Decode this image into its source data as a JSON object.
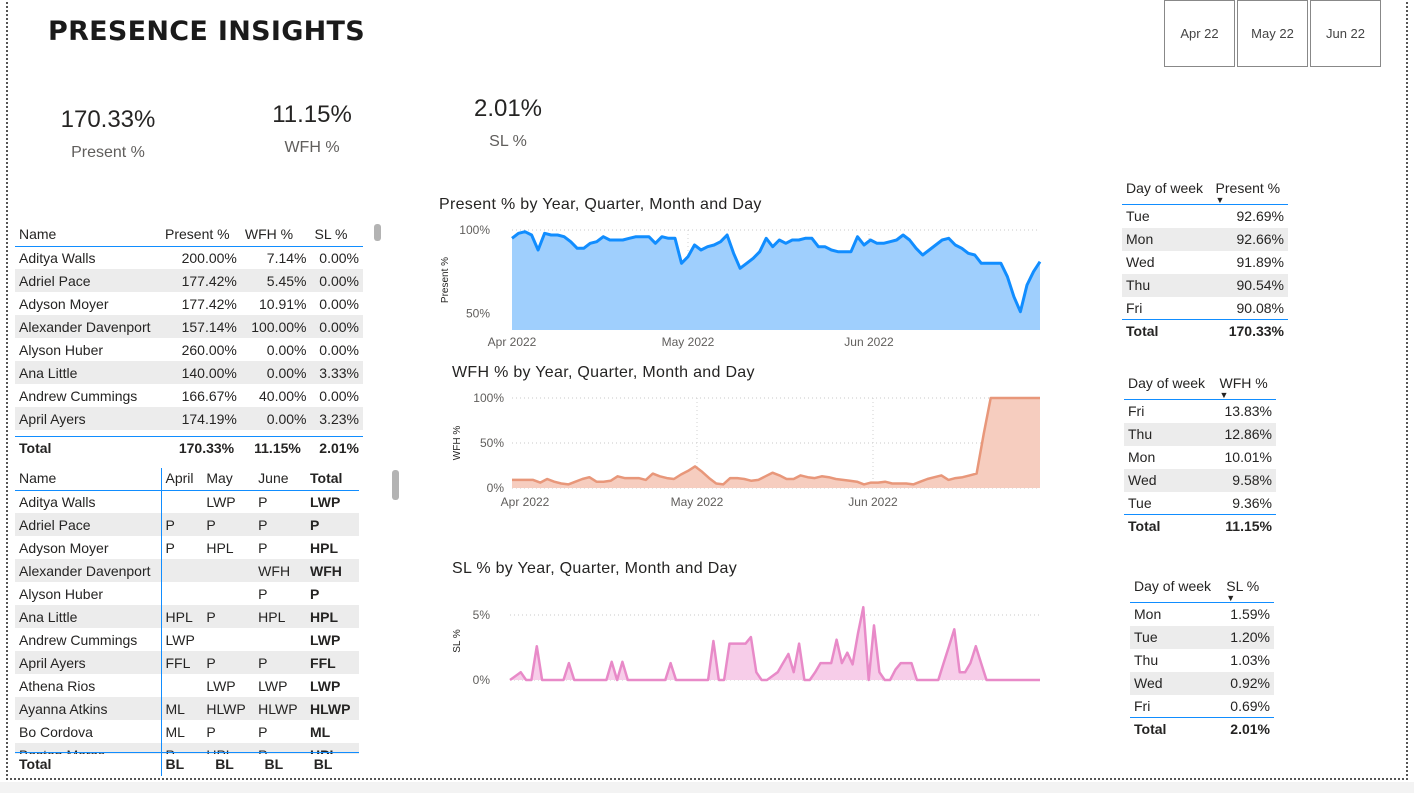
{
  "title": "PRESENCE INSIGHTS",
  "month_slicer": [
    "Apr 22",
    "May 22",
    "Jun 22"
  ],
  "kpis": [
    {
      "value": "170.33%",
      "label": "Present %"
    },
    {
      "value": "11.15%",
      "label": "WFH %"
    },
    {
      "value": "2.01%",
      "label": "SL %"
    }
  ],
  "summary_table": {
    "headers": [
      "Name",
      "Present %",
      "WFH %",
      "SL %"
    ],
    "rows": [
      [
        "Aditya Walls",
        "200.00%",
        "7.14%",
        "0.00%"
      ],
      [
        "Adriel Pace",
        "177.42%",
        "5.45%",
        "0.00%"
      ],
      [
        "Adyson Moyer",
        "177.42%",
        "10.91%",
        "0.00%"
      ],
      [
        "Alexander Davenport",
        "157.14%",
        "100.00%",
        "0.00%"
      ],
      [
        "Alyson Huber",
        "260.00%",
        "0.00%",
        "0.00%"
      ],
      [
        "Ana Little",
        "140.00%",
        "0.00%",
        "3.33%"
      ],
      [
        "Andrew Cummings",
        "166.67%",
        "40.00%",
        "0.00%"
      ],
      [
        "April Ayers",
        "174.19%",
        "0.00%",
        "3.23%"
      ]
    ],
    "total": [
      "Total",
      "170.33%",
      "11.15%",
      "2.01%"
    ]
  },
  "monthly_table": {
    "headers": [
      "Name",
      "April",
      "May",
      "June",
      "Total"
    ],
    "rows": [
      [
        "Aditya Walls",
        "",
        "LWP",
        "P",
        "LWP"
      ],
      [
        "Adriel Pace",
        "P",
        "P",
        "P",
        "P"
      ],
      [
        "Adyson Moyer",
        "P",
        "HPL",
        "P",
        "HPL"
      ],
      [
        "Alexander Davenport",
        "",
        "",
        "WFH",
        "WFH"
      ],
      [
        "Alyson Huber",
        "",
        "",
        "P",
        "P"
      ],
      [
        "Ana Little",
        "HPL",
        "P",
        "HPL",
        "HPL"
      ],
      [
        "Andrew Cummings",
        "LWP",
        "",
        "",
        "LWP"
      ],
      [
        "April Ayers",
        "FFL",
        "P",
        "P",
        "FFL"
      ],
      [
        "Athena Rios",
        "",
        "LWP",
        "LWP",
        "LWP"
      ],
      [
        "Ayanna Atkins",
        "ML",
        "HLWP",
        "HLWP",
        "HLWP"
      ],
      [
        "Bo Cordova",
        "ML",
        "P",
        "P",
        "ML"
      ],
      [
        "Boston Morse",
        "P",
        "HPL",
        "P",
        "HPL"
      ]
    ],
    "total": [
      "Total",
      "BL",
      "BL",
      "BL",
      "BL"
    ]
  },
  "dow_tables": [
    {
      "headers": [
        "Day of week",
        "Present %"
      ],
      "rows": [
        [
          "Tue",
          "92.69%"
        ],
        [
          "Mon",
          "92.66%"
        ],
        [
          "Wed",
          "91.89%"
        ],
        [
          "Thu",
          "90.54%"
        ],
        [
          "Fri",
          "90.08%"
        ]
      ],
      "total": [
        "Total",
        "170.33%"
      ]
    },
    {
      "headers": [
        "Day of week",
        "WFH %"
      ],
      "rows": [
        [
          "Fri",
          "13.83%"
        ],
        [
          "Thu",
          "12.86%"
        ],
        [
          "Mon",
          "10.01%"
        ],
        [
          "Wed",
          "9.58%"
        ],
        [
          "Tue",
          "9.36%"
        ]
      ],
      "total": [
        "Total",
        "11.15%"
      ]
    },
    {
      "headers": [
        "Day of week",
        "SL %"
      ],
      "rows": [
        [
          "Mon",
          "1.59%"
        ],
        [
          "Tue",
          "1.20%"
        ],
        [
          "Thu",
          "1.03%"
        ],
        [
          "Wed",
          "0.92%"
        ],
        [
          "Fri",
          "0.69%"
        ]
      ],
      "total": [
        "Total",
        "2.01%"
      ]
    }
  ],
  "colors": {
    "present": "#118dff",
    "present_fill": "#9fcffd",
    "wfh": "#e8977a",
    "wfh_fill": "#f6cdbf",
    "sl": "#e88ac8",
    "sl_fill": "#f7cde9",
    "accent": "#118dff"
  },
  "chart_data": [
    {
      "type": "area",
      "title": "Present % by Year, Quarter, Month and Day",
      "ylabel": "Present %",
      "x_ticks": [
        "Apr 2022",
        "May 2022",
        "Jun 2022"
      ],
      "y_ticks": [
        "100%",
        "50%"
      ],
      "ylim": [
        40,
        100
      ],
      "grid": true,
      "series": [
        {
          "values": [
            95,
            98,
            99,
            97,
            88,
            98,
            97,
            97,
            96,
            93,
            89,
            89,
            92,
            93,
            96,
            94,
            94,
            94,
            95,
            96,
            96,
            96,
            92,
            96,
            95,
            95,
            80,
            84,
            91,
            88,
            90,
            91,
            93,
            97,
            86,
            77,
            80,
            83,
            87,
            95,
            90,
            94,
            92,
            94,
            94,
            95,
            95,
            90,
            90,
            88,
            87,
            87,
            87,
            96,
            91,
            94,
            92,
            92,
            93,
            94,
            97,
            94,
            89,
            85,
            88,
            91,
            94,
            95,
            91,
            89,
            86,
            85,
            80,
            80,
            80,
            80,
            72,
            60,
            51,
            67,
            75,
            81
          ]
        }
      ]
    },
    {
      "type": "area",
      "title": "WFH % by Year, Quarter, Month and Day",
      "ylabel": "WFH %",
      "x_ticks": [
        "Apr 2022",
        "May 2022",
        "Jun 2022"
      ],
      "y_ticks": [
        "100%",
        "50%",
        "0%"
      ],
      "ylim": [
        0,
        100
      ],
      "grid": true,
      "series": [
        {
          "values": [
            9,
            9,
            9,
            9,
            6,
            10,
            7,
            5,
            4,
            7,
            10,
            12,
            7,
            7,
            8,
            13,
            11,
            11,
            11,
            9,
            16,
            13,
            11,
            10,
            15,
            19,
            24,
            18,
            11,
            5,
            4,
            11,
            11,
            10,
            8,
            9,
            13,
            17,
            14,
            10,
            10,
            14,
            12,
            11,
            13,
            12,
            10,
            9,
            8,
            7,
            4,
            6,
            6,
            7,
            5,
            5,
            5,
            4,
            7,
            10,
            12,
            14,
            9,
            11,
            12,
            14,
            16,
            60,
            100,
            100,
            100,
            100,
            100,
            100,
            100,
            100
          ]
        }
      ]
    },
    {
      "type": "area",
      "title": "SL % by Year, Quarter, Month and Day",
      "ylabel": "SL %",
      "y_ticks": [
        "5%",
        "0%"
      ],
      "ylim": [
        0,
        6
      ],
      "grid": true,
      "series": [
        {
          "values": [
            0,
            0.3,
            0.6,
            0,
            0,
            2.6,
            0,
            0,
            0,
            0,
            0,
            1.3,
            0,
            0,
            0,
            0,
            0,
            0,
            0,
            1.4,
            0,
            1.4,
            0,
            0,
            0,
            0,
            0,
            0,
            0,
            0,
            1.3,
            0,
            0,
            0,
            0,
            0,
            0,
            0,
            3,
            0,
            0,
            2.8,
            2.8,
            2.8,
            2.8,
            3.3,
            0.6,
            0,
            0,
            0.3,
            0.6,
            1.3,
            2,
            0.6,
            2.8,
            0,
            0,
            0.6,
            1.3,
            1.3,
            1.3,
            3.1,
            1.3,
            2.1,
            1.2,
            3.6,
            5.6,
            0,
            4.2,
            0.6,
            0,
            0,
            0.8,
            1.3,
            1.3,
            1.3,
            0,
            0,
            0,
            0,
            0,
            1.3,
            2.6,
            3.9,
            0.6,
            0.6,
            1.3,
            2.6,
            1.3,
            0,
            0,
            0,
            0,
            0,
            0,
            0,
            0,
            0,
            0,
            0
          ]
        }
      ]
    }
  ]
}
